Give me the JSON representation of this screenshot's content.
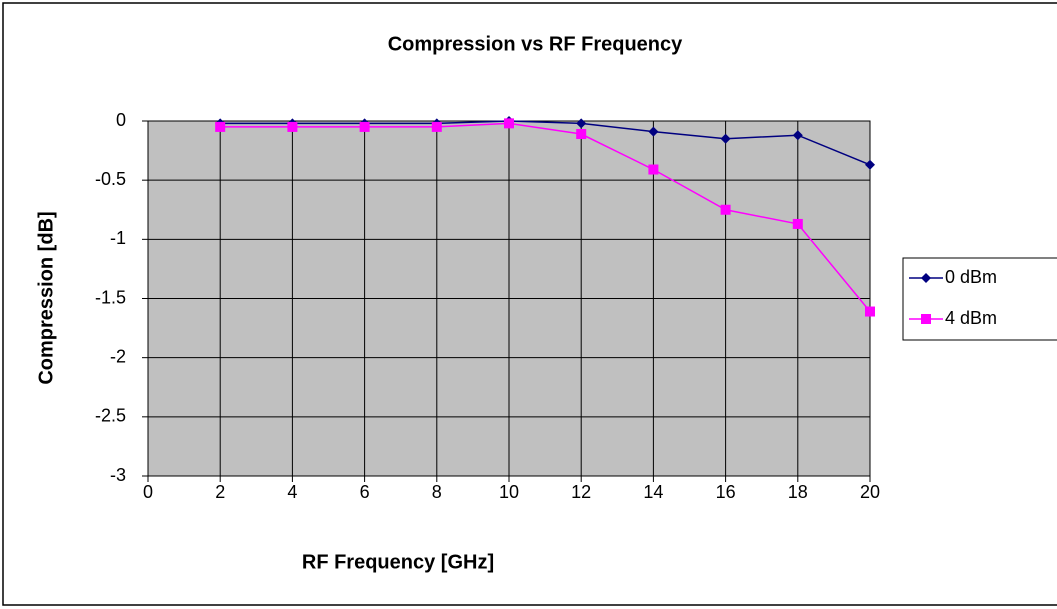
{
  "chart_data": {
    "type": "line",
    "title": "Compression vs RF Frequency",
    "x_label": "RF Frequency [GHz]",
    "y_label": "Compression [dB]",
    "x": [
      2,
      4,
      6,
      8,
      10,
      12,
      14,
      16,
      18,
      20
    ],
    "series": [
      {
        "name": "0 dBm",
        "color": "#000080",
        "marker": "diamond",
        "values": [
          -0.02,
          -0.02,
          -0.02,
          -0.02,
          0,
          -0.02,
          -0.09,
          -0.15,
          -0.12,
          -0.37
        ]
      },
      {
        "name": "4 dBm",
        "color": "#ff00ff",
        "marker": "square",
        "values": [
          -0.05,
          -0.05,
          -0.05,
          -0.05,
          -0.02,
          -0.11,
          -0.41,
          -0.75,
          -0.87,
          -1.61
        ]
      }
    ],
    "xlim": [
      0,
      20
    ],
    "xticks": [
      0,
      2,
      4,
      6,
      8,
      10,
      12,
      14,
      16,
      18,
      20
    ],
    "ylim": [
      -3,
      0
    ],
    "yticks": [
      0,
      -0.5,
      -1,
      -1.5,
      -2,
      -2.5,
      -3
    ],
    "grid": true,
    "plot_background": "#c0c0c0",
    "legend": "right"
  }
}
